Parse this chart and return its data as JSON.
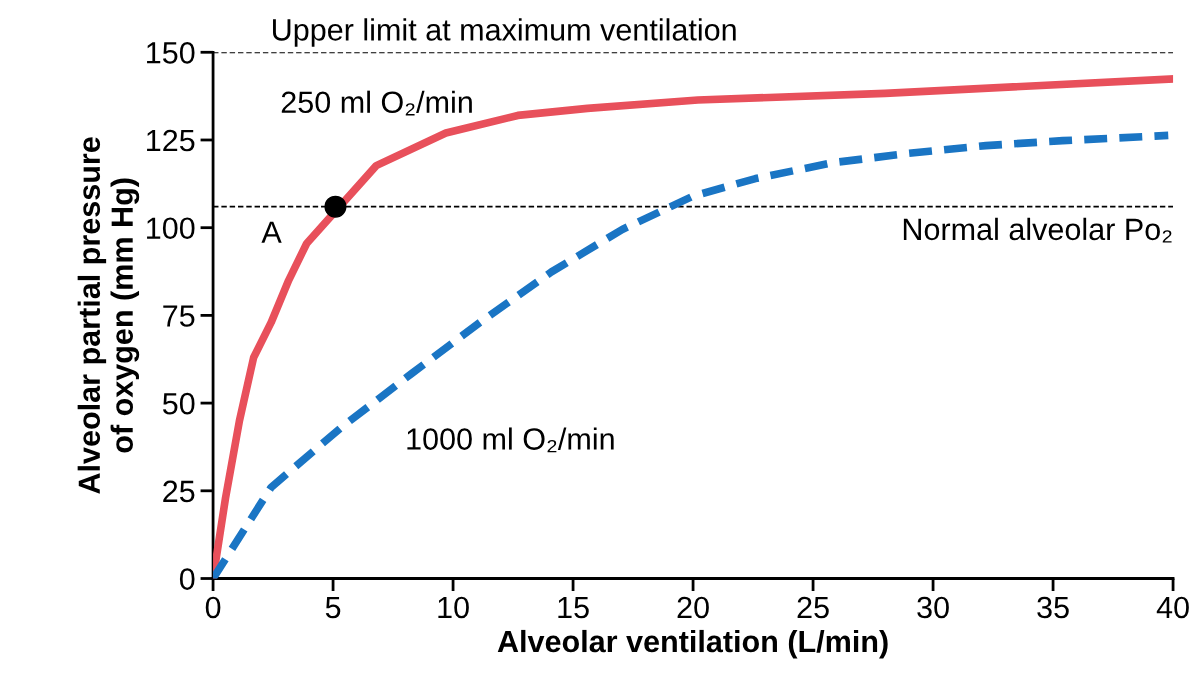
{
  "chart_data": {
    "type": "line",
    "xlabel": "Alveolar ventilation (L/min)",
    "ylabel": "Alveolar partial pressure\nof oxygen (mm Hg)",
    "xlim": [
      0,
      40
    ],
    "xticks": [
      0,
      5,
      10,
      15,
      20,
      25,
      30,
      35,
      40
    ],
    "ylim": [
      0,
      150
    ],
    "yticks": [
      0,
      25,
      50,
      75,
      100,
      125,
      150
    ],
    "grid": false,
    "legend": false,
    "series": [
      {
        "name": "250 ml O₂/min",
        "color": "#e8505b",
        "line_style": "solid",
        "x": [
          0,
          0.52,
          1.1,
          1.69,
          2.42,
          3.15,
          3.9,
          6.8,
          9.7,
          12.7,
          15.6,
          20.2,
          28,
          40
        ],
        "values": [
          0,
          23,
          45,
          63,
          73,
          85,
          95.5,
          117.7,
          127,
          132,
          134,
          136.4,
          138.3,
          142.4
        ]
      },
      {
        "name": "1000 ml O₂/min",
        "color": "#1a75c4",
        "line_style": "dashed",
        "x": [
          0,
          2.42,
          5.33,
          8.27,
          11.2,
          14.1,
          17.05,
          20,
          22.6,
          25.8,
          29,
          32.2,
          35.4,
          39.8
        ],
        "values": [
          0,
          26,
          43,
          58.4,
          73.4,
          87.4,
          99.5,
          109,
          114,
          118.5,
          121.2,
          123.4,
          124.8,
          126.3
        ]
      },
      {
        "type": "scatter",
        "color": "#000000",
        "marker": "circle",
        "x": [
          5.1
        ],
        "values": [
          106
        ]
      }
    ],
    "ref_lines": [
      {
        "axis": "y",
        "value": 150,
        "label": "Upper limit at maximum ventilation",
        "color": "#000000",
        "line_style": "dashed"
      },
      {
        "axis": "y",
        "value": 106,
        "label": "Normal alveolar Po₂",
        "color": "#000000",
        "line_style": "dashed"
      }
    ],
    "annotations": [
      {
        "text": "A",
        "x": 5.1,
        "y": 106
      }
    ]
  }
}
